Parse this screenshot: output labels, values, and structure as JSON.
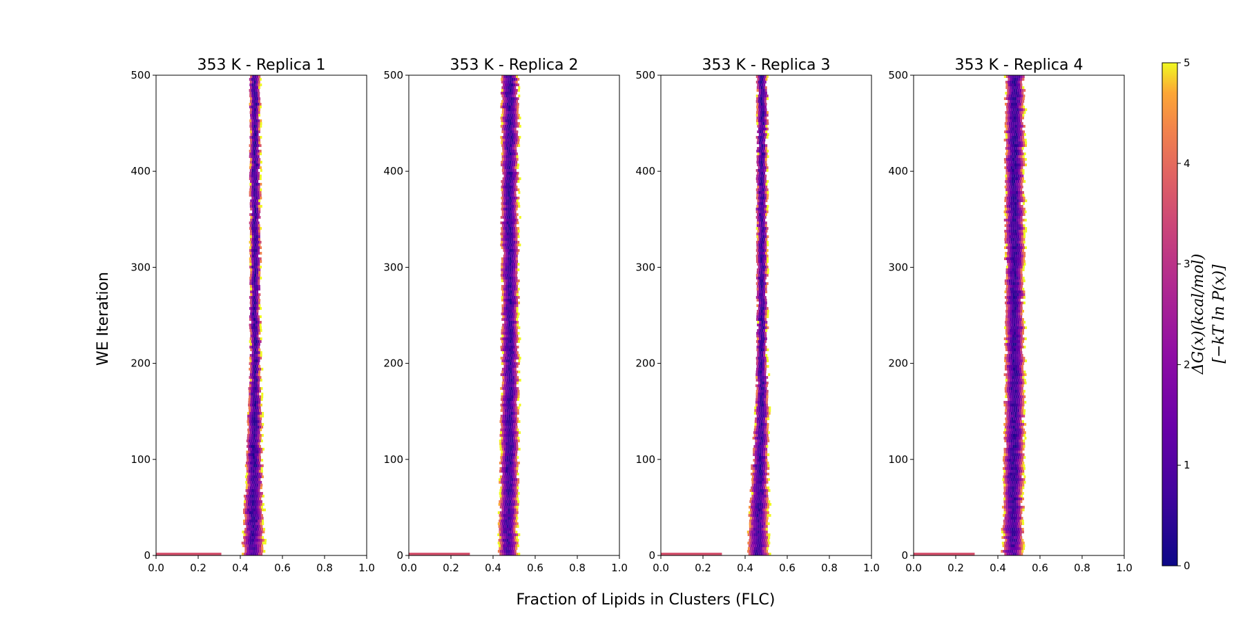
{
  "figure": {
    "xlabel": "Fraction of Lipids in Clusters (FLC)",
    "ylabel": "WE Iteration"
  },
  "colorbar": {
    "label_line1": "ΔG(x)(kcal/mol)",
    "label_line2": "[−kT ln P(x)]",
    "range": [
      0,
      5
    ],
    "ticks": [
      "0",
      "1",
      "2",
      "3",
      "4",
      "5"
    ],
    "colormap": "plasma"
  },
  "chart_data": [
    {
      "type": "heatmap",
      "title": "353 K - Replica 1",
      "xlim": [
        0,
        1
      ],
      "ylim": [
        0,
        500
      ],
      "xticks": [
        "0.0",
        "0.2",
        "0.4",
        "0.6",
        "0.8",
        "1.0"
      ],
      "yticks": [
        "0",
        "100",
        "200",
        "300",
        "400",
        "500"
      ],
      "band": {
        "center_start": 0.46,
        "center_end": 0.47,
        "halfwidth_start": 0.05,
        "halfwidth_end": 0.025
      },
      "initial_strip": {
        "x_start": 0.0,
        "x_end": 0.31,
        "value": 3.6
      }
    },
    {
      "type": "heatmap",
      "title": "353 K - Replica 2",
      "xlim": [
        0,
        1
      ],
      "ylim": [
        0,
        500
      ],
      "xticks": [
        "0.0",
        "0.2",
        "0.4",
        "0.6",
        "0.8",
        "1.0"
      ],
      "yticks": [
        "0",
        "100",
        "200",
        "300",
        "400",
        "500"
      ],
      "band": {
        "center_start": 0.47,
        "center_end": 0.48,
        "halfwidth_start": 0.045,
        "halfwidth_end": 0.04
      },
      "initial_strip": {
        "x_start": 0.0,
        "x_end": 0.29,
        "value": 3.6
      }
    },
    {
      "type": "heatmap",
      "title": "353 K - Replica 3",
      "xlim": [
        0,
        1
      ],
      "ylim": [
        0,
        500
      ],
      "xticks": [
        "0.0",
        "0.2",
        "0.4",
        "0.6",
        "0.8",
        "1.0"
      ],
      "yticks": [
        "0",
        "100",
        "200",
        "300",
        "400",
        "500"
      ],
      "band": {
        "center_start": 0.46,
        "center_end": 0.48,
        "halfwidth_start": 0.05,
        "halfwidth_end": 0.025
      },
      "initial_strip": {
        "x_start": 0.0,
        "x_end": 0.29,
        "value": 3.6
      }
    },
    {
      "type": "heatmap",
      "title": "353 K - Replica 4",
      "xlim": [
        0,
        1
      ],
      "ylim": [
        0,
        500
      ],
      "xticks": [
        "0.0",
        "0.2",
        "0.4",
        "0.6",
        "0.8",
        "1.0"
      ],
      "yticks": [
        "0",
        "100",
        "200",
        "300",
        "400",
        "500"
      ],
      "band": {
        "center_start": 0.47,
        "center_end": 0.48,
        "halfwidth_start": 0.05,
        "halfwidth_end": 0.045
      },
      "initial_strip": {
        "x_start": 0.0,
        "x_end": 0.29,
        "value": 3.6
      }
    }
  ]
}
